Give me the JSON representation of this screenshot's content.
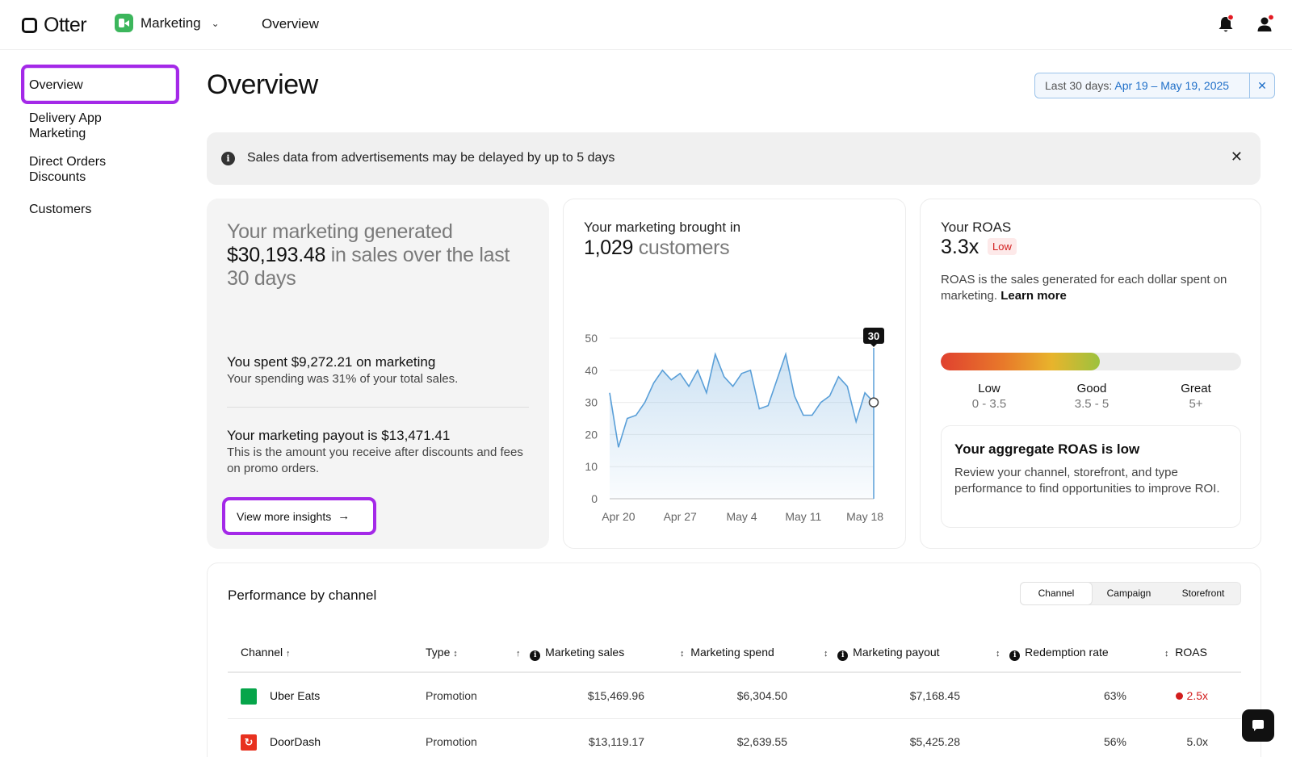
{
  "header": {
    "logo_text": "Otter",
    "app_name": "Marketing",
    "page_title": "Overview"
  },
  "sidebar": {
    "items": [
      {
        "label": "Overview",
        "active": true
      },
      {
        "label": "Delivery App Marketing"
      },
      {
        "label": "Direct Orders Discounts"
      },
      {
        "label": "Customers"
      }
    ]
  },
  "main": {
    "title": "Overview",
    "date_filter": {
      "prefix": "Last 30 days: ",
      "range": "Apr 19 – May 19, 2025"
    },
    "banner": "Sales data from advertisements may be delayed by up to 5 days"
  },
  "summary_card": {
    "head_pre": "Your marketing generated ",
    "sales_amount": "$30,193.48",
    "head_post": " in sales over the last 30 days",
    "spent_title": "You spent $9,272.21 on marketing",
    "spent_sub": "Your spending was 31% of your total sales.",
    "payout_title": "Your marketing payout is $13,471.41",
    "payout_sub": "This is the amount you receive after discounts and fees on promo orders.",
    "button_label": "View more insights"
  },
  "customers_card": {
    "title": "Your marketing brought in",
    "count": "1,029",
    "count_suffix": " customers",
    "tooltip_value": "30"
  },
  "chart_data": {
    "type": "area",
    "x_tick_labels": [
      "Apr 20",
      "Apr 27",
      "May 4",
      "May 11",
      "May 18"
    ],
    "x_tick_index": [
      1,
      8,
      15,
      22,
      29
    ],
    "y_ticks": [
      0,
      10,
      20,
      30,
      40,
      50
    ],
    "ylim": [
      0,
      50
    ],
    "values": [
      33,
      16,
      25,
      26,
      30,
      36,
      40,
      37,
      39,
      35,
      40,
      33,
      45,
      38,
      35,
      39,
      40,
      28,
      29,
      37,
      45,
      32,
      26,
      26,
      30,
      32,
      38,
      35,
      24,
      33,
      30
    ],
    "highlight_index": 30,
    "color": "#5a9fd8"
  },
  "roas_card": {
    "title": "Your ROAS",
    "value": "3.3x",
    "badge": "Low",
    "desc": "ROAS is the sales generated for each dollar spent on marketing. ",
    "learn_more": "Learn more",
    "fill_fraction": 0.53,
    "scale": [
      {
        "name": "Low",
        "range": "0 - 3.5"
      },
      {
        "name": "Good",
        "range": "3.5 - 5"
      },
      {
        "name": "Great",
        "range": "5+"
      }
    ],
    "agg_title": "Your aggregate ROAS is low",
    "agg_text": "Review your channel, storefront, and type performance to find opportunities to improve ROI."
  },
  "performance": {
    "title": "Performance by channel",
    "tabs": [
      {
        "label": "Channel"
      },
      {
        "label": "Campaign"
      },
      {
        "label": "Storefront"
      }
    ],
    "columns": {
      "channel": "Channel",
      "type": "Type",
      "marketing_sales": "Marketing sales",
      "marketing_spend": "Marketing spend",
      "marketing_payout": "Marketing payout",
      "redemption_rate": "Redemption rate",
      "roas": "ROAS"
    },
    "rows": [
      {
        "channel": "Uber Eats",
        "type": "Promotion",
        "sales": "$15,469.96",
        "spend": "$6,304.50",
        "payout": "$7,168.45",
        "redemption": "63%",
        "roas": "2.5x",
        "roas_low": true
      },
      {
        "channel": "DoorDash",
        "type": "Promotion",
        "sales": "$13,119.17",
        "spend": "$2,639.55",
        "payout": "$5,425.28",
        "redemption": "56%",
        "roas": "5.0x",
        "roas_low": false
      }
    ]
  }
}
